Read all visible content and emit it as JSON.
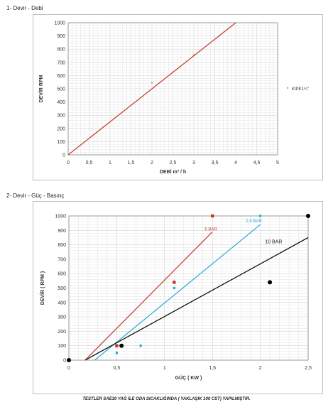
{
  "sections": {
    "chart1_heading": "1- Devir - Debi",
    "chart2_heading": "2- Devir - Güç - Basınç"
  },
  "footer": "TESTLER SAE30 YAĞ İLE ODA SICAKLIĞINDA ( YAKLAŞIK 100 CST) YAPILMIŞTIR.",
  "colors": {
    "red": "#c0392b",
    "cyan": "#2aa7d6",
    "black": "#000000",
    "grid": "#c8c8c8"
  },
  "chart_data": [
    {
      "type": "line",
      "xlabel": "DEBİ m³ / h",
      "ylabel": "DEVİR RPM",
      "xlim": [
        0,
        5
      ],
      "ylim": [
        0,
        1000
      ],
      "x_ticks": [
        "0",
        "0,5",
        "1",
        "1,5",
        "2",
        "2,5",
        "3",
        "3,5",
        "4",
        "4,5",
        "5"
      ],
      "y_ticks": [
        "0",
        "100",
        "200",
        "300",
        "400",
        "500",
        "600",
        "700",
        "800",
        "900",
        "1000"
      ],
      "grid": true,
      "legend": "right",
      "series": [
        {
          "name": "KIPK1¼\"",
          "points": [
            [
              2,
              540
            ],
            [
              3,
              750
            ]
          ],
          "trend": [
            [
              0,
              0
            ],
            [
              4,
              1000
            ]
          ]
        }
      ]
    },
    {
      "type": "scatter",
      "xlabel": "GÜÇ ( KW )",
      "ylabel": "DEVİR ( RPM )",
      "xlim": [
        0,
        2.5
      ],
      "ylim": [
        0,
        1000
      ],
      "x_ticks": [
        "0",
        "0,5",
        "1",
        "1,5",
        "2",
        "2,5"
      ],
      "y_ticks": [
        "0",
        "100",
        "200",
        "300",
        "400",
        "500",
        "600",
        "700",
        "800",
        "900",
        "1000"
      ],
      "grid": true,
      "series": [
        {
          "name": "5 BAR",
          "points": [
            [
              0.5,
              100
            ],
            [
              1.1,
              540
            ],
            [
              1.5,
              1000
            ]
          ],
          "trend": [
            [
              0.17,
              0
            ],
            [
              1.5,
              890
            ]
          ]
        },
        {
          "name": "2,5 BAR",
          "points": [
            [
              0.5,
              50
            ],
            [
              0.75,
              100
            ],
            [
              1.1,
              500
            ],
            [
              2.0,
              1000
            ]
          ],
          "trend": [
            [
              0.27,
              0
            ],
            [
              2.0,
              940
            ]
          ]
        },
        {
          "name": "10 BAR",
          "points": [
            [
              0,
              0
            ],
            [
              0.55,
              100
            ],
            [
              2.1,
              540
            ],
            [
              2.5,
              1000
            ]
          ],
          "trend": [
            [
              0.17,
              0
            ],
            [
              2.5,
              850
            ]
          ]
        }
      ]
    }
  ]
}
